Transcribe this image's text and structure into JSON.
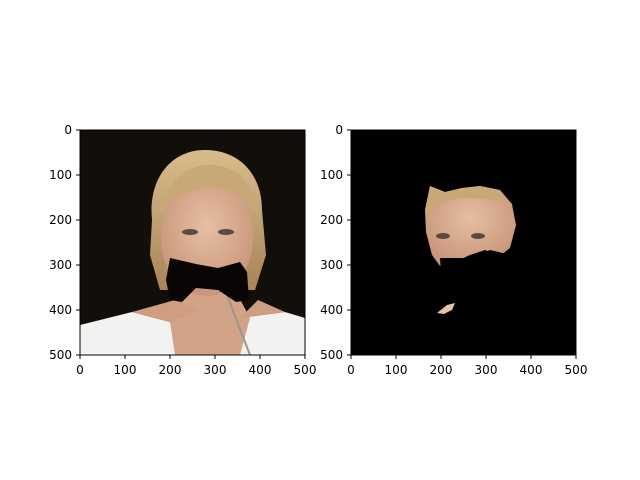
{
  "figure": {
    "background": "#ffffff",
    "panels": [
      {
        "id": "left",
        "content": "portrait photo of a blonde woman with a black bow-tie-shaped mask covering her mouth",
        "xticks": [
          "0",
          "100",
          "200",
          "300",
          "400",
          "500"
        ],
        "yticks": [
          "0",
          "100",
          "200",
          "300",
          "400",
          "500"
        ]
      },
      {
        "id": "right",
        "content": "segmented face region on black background with bow-tie mask removed",
        "xticks": [
          "0",
          "100",
          "200",
          "300",
          "400",
          "500"
        ],
        "yticks": [
          "0",
          "100",
          "200",
          "300",
          "400",
          "500"
        ]
      }
    ]
  },
  "colors": {
    "photo_background": "#120e09",
    "hair": "#c9a877",
    "skin": "#d9ad90",
    "shirt": "#f2f2f0",
    "mask": "#0a0505",
    "segmentation_background": "#000000"
  }
}
